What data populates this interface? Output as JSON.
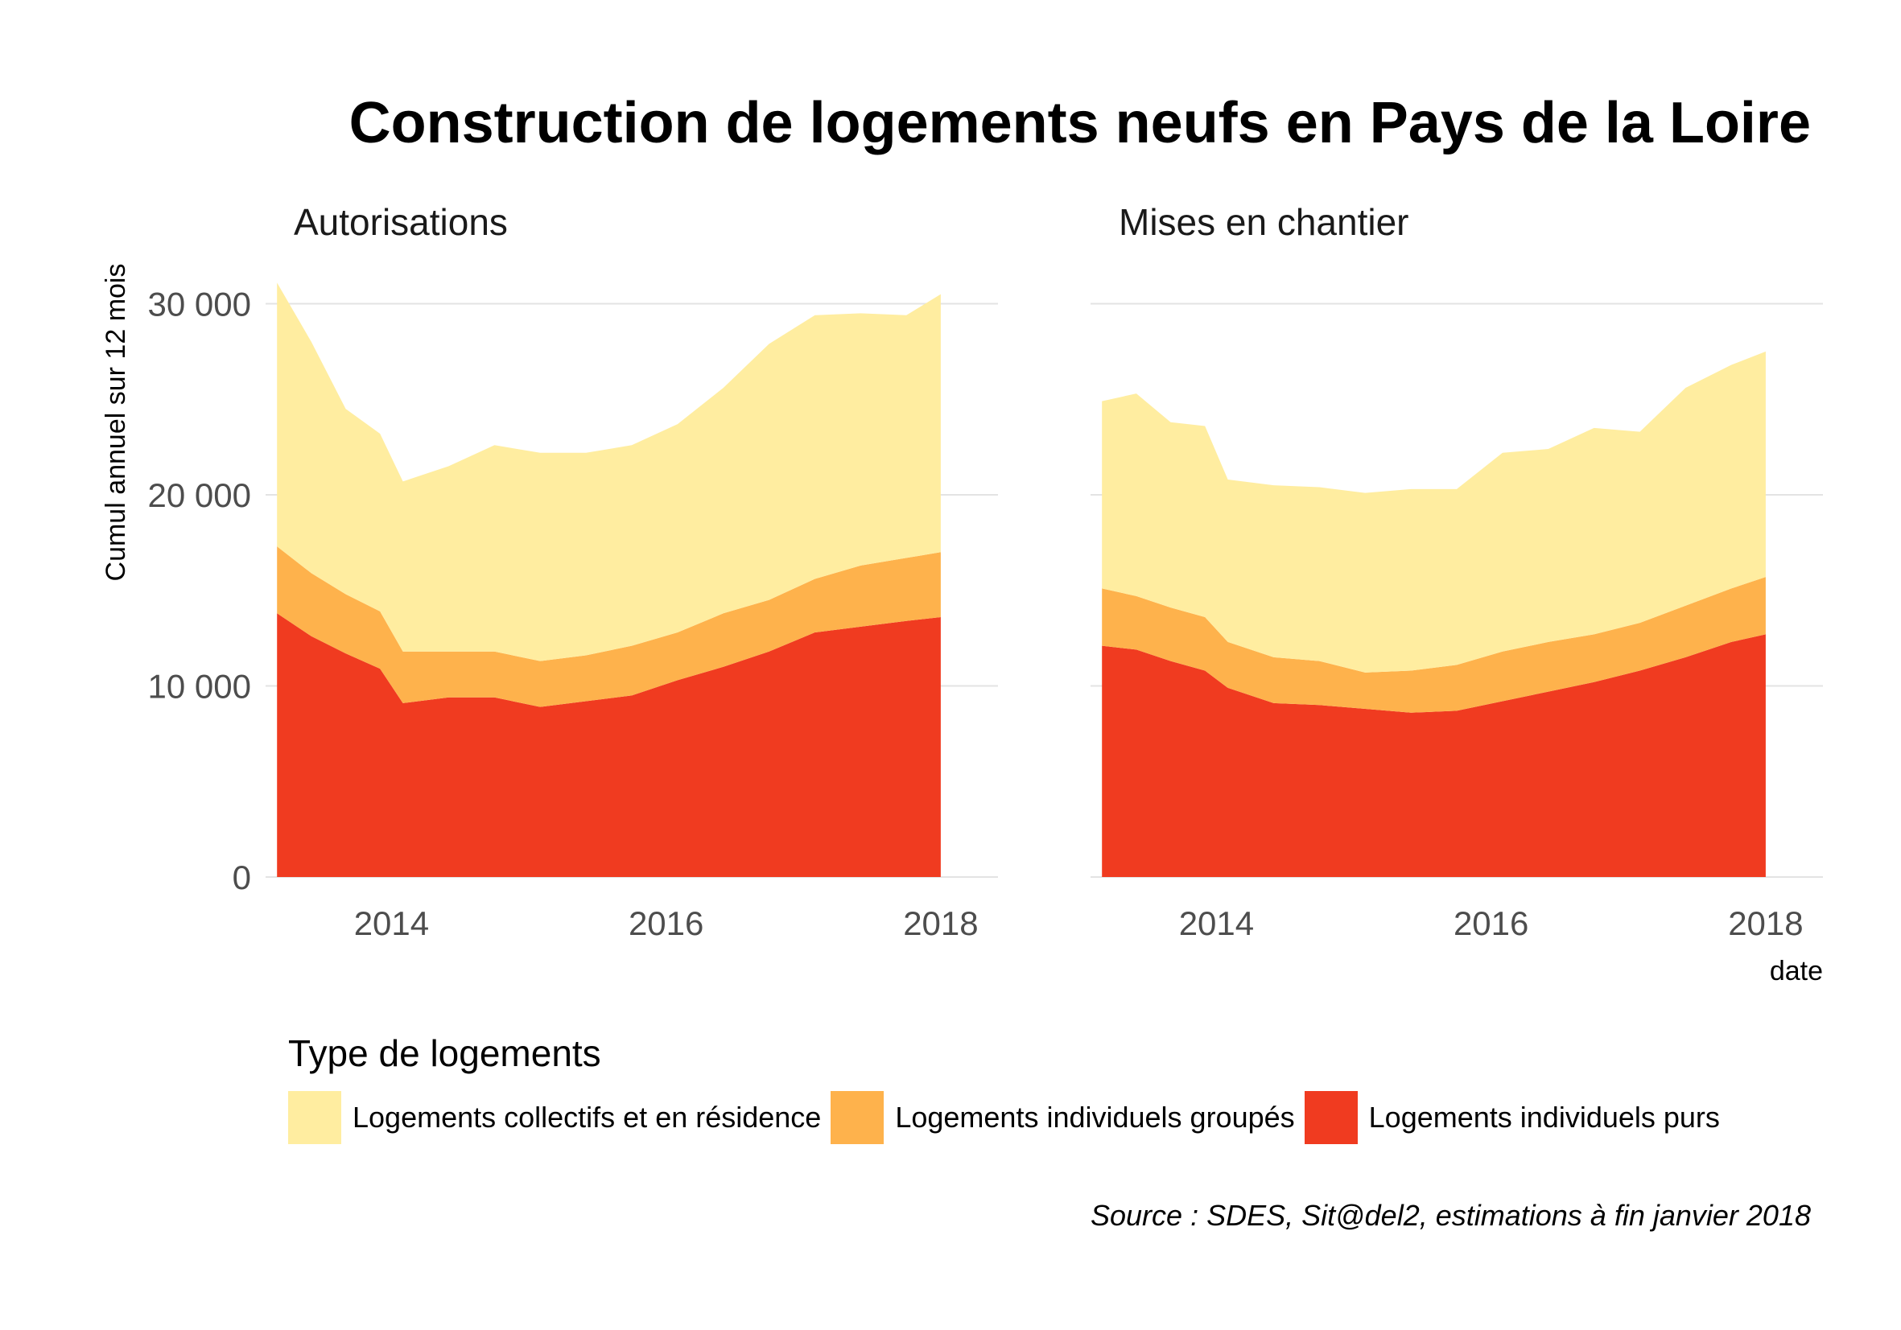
{
  "title": "Construction de logements neufs en Pays de la Loire",
  "legend": {
    "title": "Type de logements",
    "items": [
      {
        "label": "Logements collectifs et en résidence",
        "color": "#FFEDA0"
      },
      {
        "label": "Logements individuels groupés",
        "color": "#FEB24C"
      },
      {
        "label": "Logements individuels purs",
        "color": "#F03B20"
      }
    ]
  },
  "source": "Source : SDES, Sit@del2, estimations à fin janvier 2018",
  "chart_data": [
    {
      "type": "area",
      "stacked": true,
      "title": "Autorisations",
      "ylabel": "Cumul annuel sur 12 mois",
      "xlabel": "",
      "ylim": [
        0,
        32000
      ],
      "xlim": [
        "2013-02-01",
        "2018-06-01"
      ],
      "x_ticks": [
        "2014",
        "2016",
        "2018"
      ],
      "y_ticks": [
        "0",
        "10 000",
        "20 000",
        "30 000"
      ],
      "grid": true,
      "x": [
        "2013-03",
        "2013-06",
        "2013-09",
        "2013-12",
        "2014-02",
        "2014-06",
        "2014-10",
        "2015-02",
        "2015-06",
        "2015-10",
        "2016-02",
        "2016-06",
        "2016-10",
        "2017-02",
        "2017-06",
        "2017-10",
        "2018-01"
      ],
      "series": [
        {
          "name": "Logements individuels purs",
          "values": [
            13800,
            12600,
            11700,
            10900,
            9100,
            9400,
            9400,
            8900,
            9200,
            9500,
            10300,
            11000,
            11800,
            12800,
            13100,
            13400,
            13600
          ]
        },
        {
          "name": "Logements individuels groupés",
          "values": [
            3500,
            3300,
            3100,
            3000,
            2700,
            2400,
            2400,
            2400,
            2400,
            2600,
            2500,
            2800,
            2700,
            2800,
            3200,
            3300,
            3400
          ]
        },
        {
          "name": "Logements collectifs et en résidence",
          "values": [
            13800,
            12100,
            9700,
            9300,
            8900,
            9700,
            10800,
            10900,
            10600,
            10500,
            10900,
            11800,
            13400,
            13800,
            13200,
            12700,
            13500
          ]
        }
      ]
    },
    {
      "type": "area",
      "stacked": true,
      "title": "Mises en chantier",
      "ylabel": "",
      "xlabel": "date",
      "ylim": [
        0,
        32000
      ],
      "xlim": [
        "2013-02-01",
        "2018-06-01"
      ],
      "x_ticks": [
        "2014",
        "2016",
        "2018"
      ],
      "y_ticks": [
        "0",
        "10 000",
        "20 000",
        "30 000"
      ],
      "grid": true,
      "x": [
        "2013-03",
        "2013-06",
        "2013-09",
        "2013-12",
        "2014-02",
        "2014-06",
        "2014-10",
        "2015-02",
        "2015-06",
        "2015-10",
        "2016-02",
        "2016-06",
        "2016-10",
        "2017-02",
        "2017-06",
        "2017-10",
        "2018-01"
      ],
      "series": [
        {
          "name": "Logements individuels purs",
          "values": [
            12100,
            11900,
            11300,
            10800,
            9900,
            9100,
            9000,
            8800,
            8600,
            8700,
            9200,
            9700,
            10200,
            10800,
            11500,
            12300,
            12700
          ]
        },
        {
          "name": "Logements individuels groupés",
          "values": [
            3000,
            2800,
            2800,
            2800,
            2400,
            2400,
            2300,
            1900,
            2200,
            2400,
            2600,
            2600,
            2500,
            2500,
            2700,
            2800,
            3000
          ]
        },
        {
          "name": "Logements collectifs et en résidence",
          "values": [
            9800,
            10600,
            9700,
            10000,
            8500,
            9000,
            9100,
            9400,
            9500,
            9200,
            10400,
            10100,
            10800,
            10000,
            11400,
            11700,
            11800
          ]
        }
      ]
    }
  ]
}
